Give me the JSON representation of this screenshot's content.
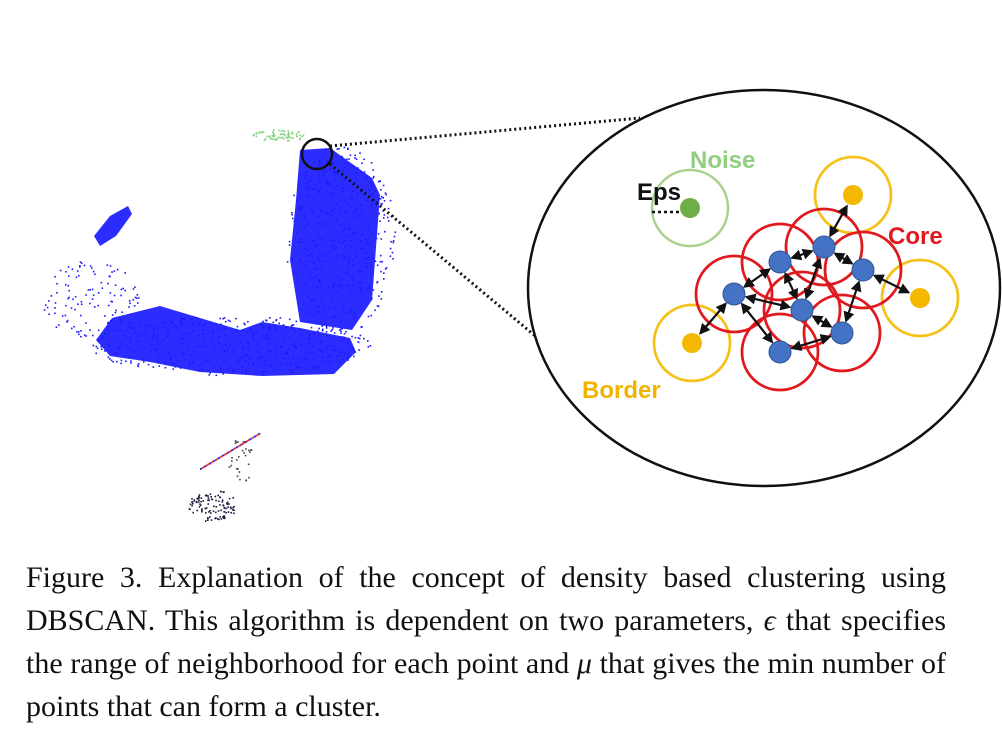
{
  "figure": {
    "labels": {
      "noise": "Noise",
      "eps": "Eps",
      "core": "Core",
      "border": "Border"
    },
    "colors": {
      "cluster_points": "#1a1aff",
      "noise_points": "#7ed07e",
      "core_point": "#4472c4",
      "core_ring": "#e0191f",
      "border_point": "#f5b800",
      "border_ring": "#f5c21b",
      "noise_point": "#70ad47",
      "noise_ring": "#a9d18e",
      "noise_text": "#8fcf7f",
      "core_text": "#e0191f",
      "border_text": "#f0b400"
    },
    "icons": [
      "magnifier-circle",
      "double-arrow"
    ]
  },
  "caption": {
    "label": "Figure 3.",
    "text_part1": "Explanation of the concept of density based clustering using DBSCAN. This algorithm is dependent on two parameters,",
    "symbol_eps": "ϵ",
    "text_part2": "that specifies the range of neighborhood for each point and",
    "symbol_mu": "μ",
    "text_part3": "that gives the min number of points that can form a cluster."
  }
}
